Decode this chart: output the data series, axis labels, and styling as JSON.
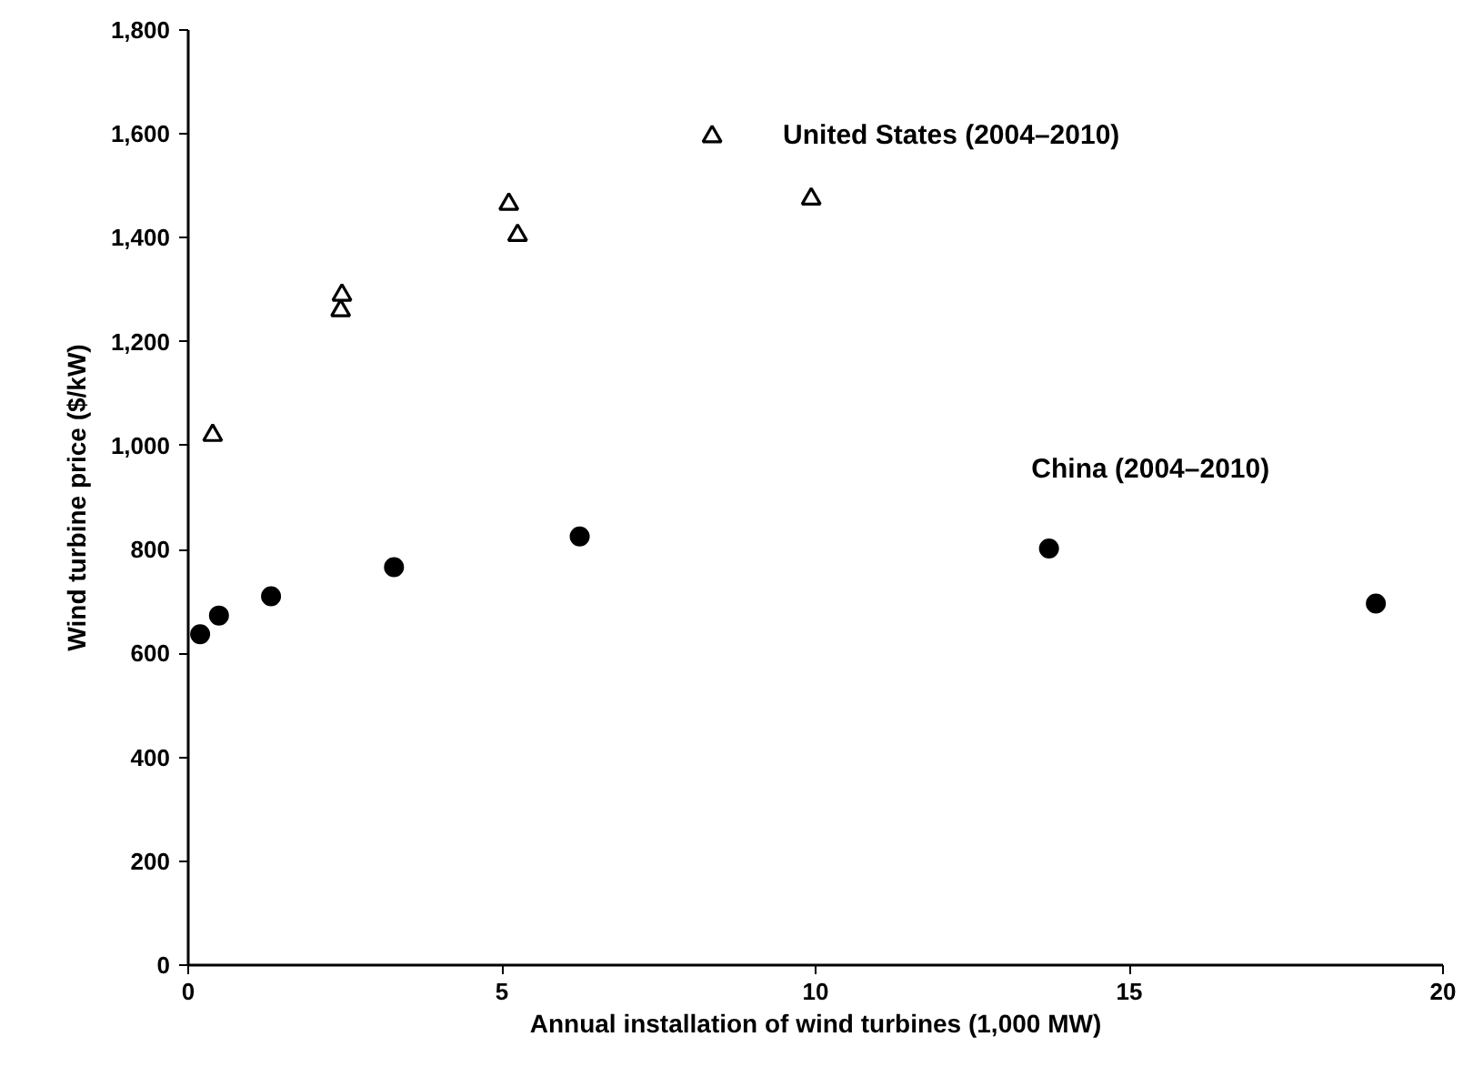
{
  "chart_data": {
    "type": "scatter",
    "xlabel": "Annual installation of wind turbines (1,000 MW)",
    "ylabel": "Wind turbine price ($/kW)",
    "xlim": [
      0,
      20
    ],
    "xticks": [
      0,
      5,
      10,
      15,
      20
    ],
    "ylim": [
      0,
      1800
    ],
    "yticks": [
      0,
      200,
      400,
      600,
      800,
      {
        "value": 1000,
        "label": "1,000"
      },
      {
        "value": 1200,
        "label": "1,200"
      },
      {
        "value": 1400,
        "label": "1,400"
      },
      {
        "value": 1600,
        "label": "1,600"
      },
      {
        "value": 1800,
        "label": "1,800"
      }
    ],
    "grid": false,
    "series": [
      {
        "name": "United States (2004–2010)",
        "color": "#000000",
        "marker": "triangle",
        "x": [
          0.39,
          2.43,
          2.45,
          5.11,
          5.25,
          8.35,
          9.93
        ],
        "values": [
          1020,
          1260,
          1290,
          1465,
          1405,
          1595,
          1475
        ]
      },
      {
        "name": "China (2004–2010)",
        "color": "#000000",
        "marker": "circle",
        "x": [
          0.19,
          0.49,
          1.32,
          3.28,
          6.24,
          13.72,
          18.93
        ],
        "values": [
          637,
          673,
          710,
          766,
          825,
          802,
          696
        ]
      }
    ]
  }
}
